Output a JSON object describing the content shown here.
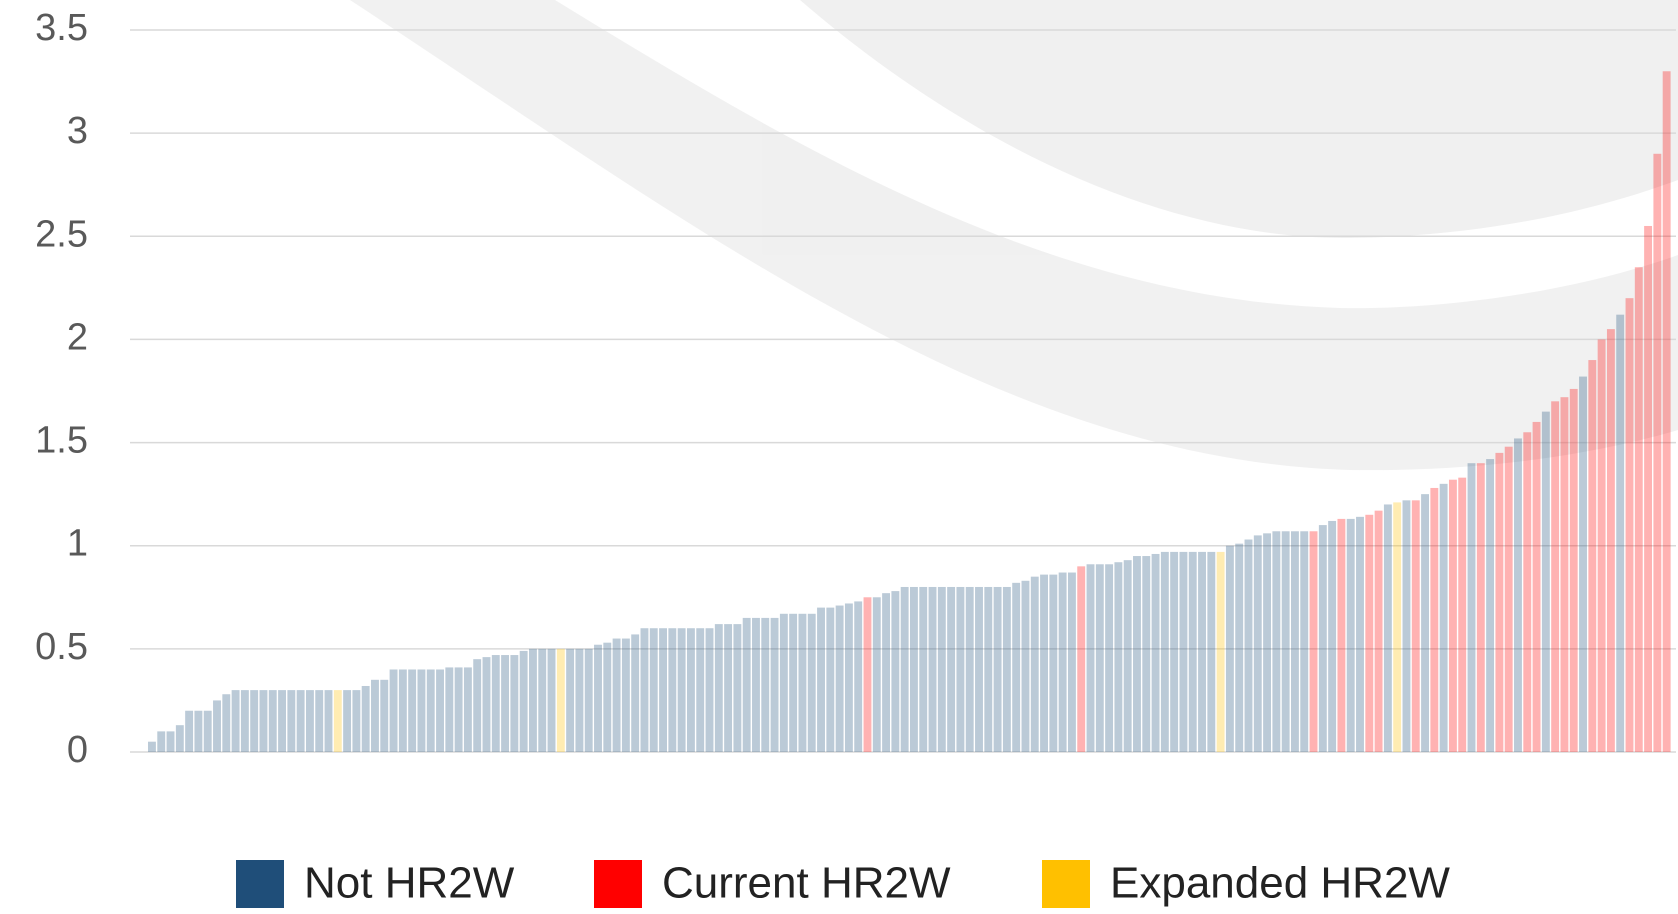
{
  "chart_data": {
    "type": "bar",
    "series": [
      {
        "name": "Not HR2W",
        "color": "#1f4e79"
      },
      {
        "name": "Current HR2W",
        "color": "#ff0000"
      },
      {
        "name": "Expanded HR2W",
        "color": "#ffc000"
      }
    ],
    "bar_opacity": 0.3,
    "ylim": [
      0,
      3.5
    ],
    "yticks": [
      0,
      0.5,
      1,
      1.5,
      2,
      2.5,
      3,
      3.5
    ],
    "grid": true,
    "values": [
      0.05,
      0.1,
      0.1,
      0.13,
      0.2,
      0.2,
      0.2,
      0.25,
      0.28,
      0.3,
      0.3,
      0.3,
      0.3,
      0.3,
      0.3,
      0.3,
      0.3,
      0.3,
      0.3,
      0.3,
      0.3,
      0.3,
      0.3,
      0.32,
      0.35,
      0.35,
      0.4,
      0.4,
      0.4,
      0.4,
      0.4,
      0.4,
      0.41,
      0.41,
      0.41,
      0.45,
      0.46,
      0.47,
      0.47,
      0.47,
      0.49,
      0.5,
      0.5,
      0.5,
      0.5,
      0.5,
      0.5,
      0.5,
      0.52,
      0.53,
      0.55,
      0.55,
      0.57,
      0.6,
      0.6,
      0.6,
      0.6,
      0.6,
      0.6,
      0.6,
      0.6,
      0.62,
      0.62,
      0.62,
      0.65,
      0.65,
      0.65,
      0.65,
      0.67,
      0.67,
      0.67,
      0.67,
      0.7,
      0.7,
      0.71,
      0.72,
      0.73,
      0.75,
      0.75,
      0.77,
      0.78,
      0.8,
      0.8,
      0.8,
      0.8,
      0.8,
      0.8,
      0.8,
      0.8,
      0.8,
      0.8,
      0.8,
      0.8,
      0.82,
      0.83,
      0.85,
      0.86,
      0.86,
      0.87,
      0.87,
      0.9,
      0.91,
      0.91,
      0.91,
      0.92,
      0.93,
      0.95,
      0.95,
      0.96,
      0.97,
      0.97,
      0.97,
      0.97,
      0.97,
      0.97,
      0.97,
      1.0,
      1.01,
      1.03,
      1.05,
      1.06,
      1.07,
      1.07,
      1.07,
      1.07,
      1.07,
      1.1,
      1.12,
      1.13,
      1.13,
      1.14,
      1.15,
      1.17,
      1.2,
      1.21,
      1.22,
      1.22,
      1.25,
      1.28,
      1.3,
      1.32,
      1.33,
      1.4,
      1.4,
      1.42,
      1.45,
      1.48,
      1.52,
      1.55,
      1.6,
      1.65,
      1.7,
      1.72,
      1.76,
      1.82,
      1.9,
      2.0,
      2.05,
      2.12,
      2.2,
      2.35,
      2.55,
      2.9,
      3.3
    ],
    "groups": [
      0,
      0,
      0,
      0,
      0,
      0,
      0,
      0,
      0,
      0,
      0,
      0,
      0,
      0,
      0,
      0,
      0,
      0,
      0,
      0,
      2,
      0,
      0,
      0,
      0,
      0,
      0,
      0,
      0,
      0,
      0,
      0,
      0,
      0,
      0,
      0,
      0,
      0,
      0,
      0,
      0,
      0,
      0,
      0,
      2,
      0,
      0,
      0,
      0,
      0,
      0,
      0,
      0,
      0,
      0,
      0,
      0,
      0,
      0,
      0,
      0,
      0,
      0,
      0,
      0,
      0,
      0,
      0,
      0,
      0,
      0,
      0,
      0,
      0,
      0,
      0,
      0,
      1,
      0,
      0,
      0,
      0,
      0,
      0,
      0,
      0,
      0,
      0,
      0,
      0,
      0,
      0,
      0,
      0,
      0,
      0,
      0,
      0,
      0,
      0,
      1,
      0,
      0,
      0,
      0,
      0,
      0,
      0,
      0,
      0,
      0,
      0,
      0,
      0,
      0,
      2,
      0,
      0,
      0,
      0,
      0,
      0,
      0,
      0,
      0,
      1,
      0,
      0,
      1,
      0,
      0,
      1,
      1,
      0,
      2,
      0,
      1,
      0,
      1,
      0,
      1,
      1,
      0,
      1,
      0,
      1,
      1,
      0,
      1,
      1,
      0,
      1,
      1,
      1,
      0,
      1,
      1,
      1,
      0,
      1,
      1,
      1,
      1,
      1
    ]
  }
}
